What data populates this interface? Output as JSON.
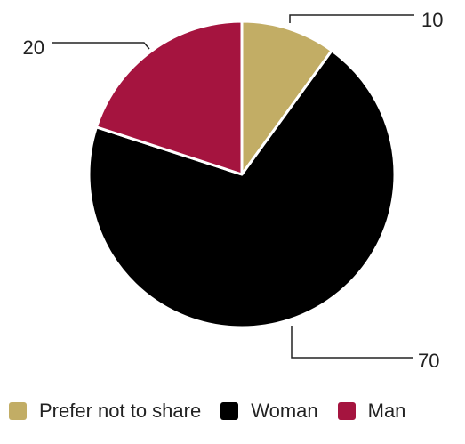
{
  "chart_data": {
    "type": "pie",
    "categories": [
      "Prefer not to share",
      "Woman",
      "Man"
    ],
    "values": [
      10,
      70,
      20
    ],
    "colors": [
      "#c2ad65",
      "#000000",
      "#a5143f"
    ],
    "data_labels": [
      "10",
      "70",
      "20"
    ],
    "title": "",
    "legend_position": "bottom",
    "start_angle_deg": 0,
    "direction": "clockwise"
  }
}
